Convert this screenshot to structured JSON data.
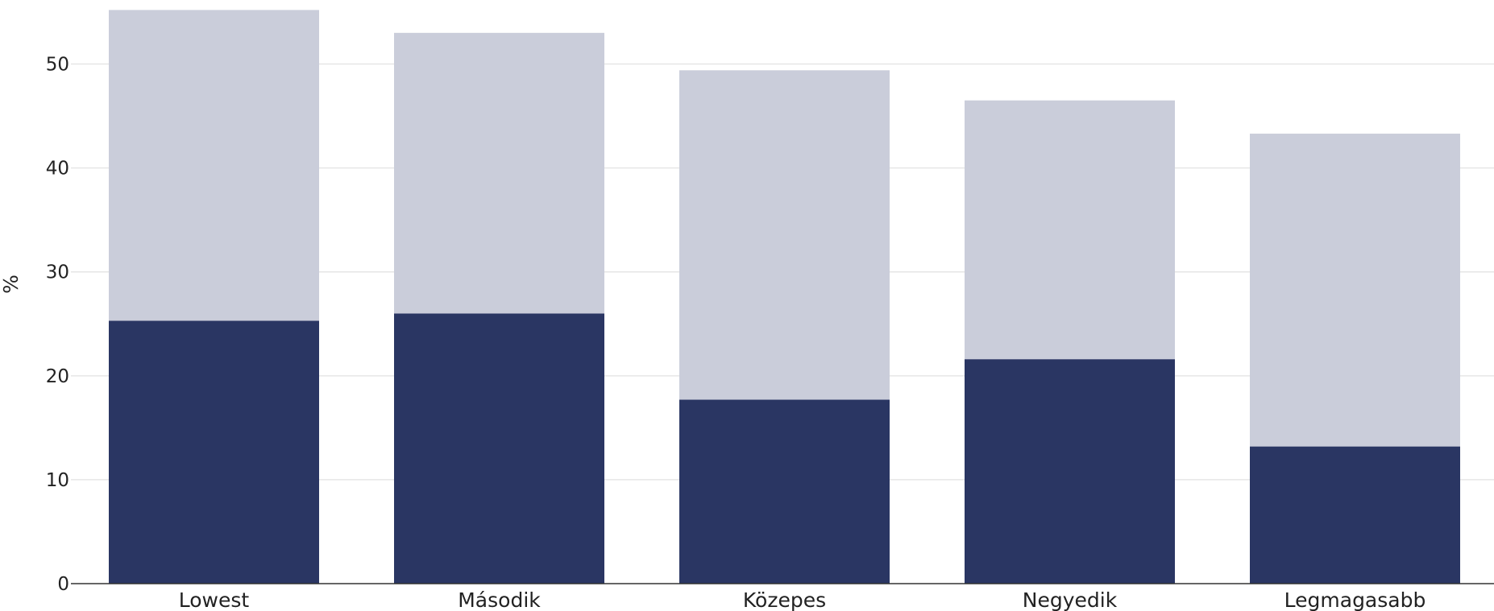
{
  "chart_data": {
    "type": "bar",
    "stacked": true,
    "categories": [
      "Lowest",
      "Második",
      "Közepes",
      "Negyedik",
      "Legmagasabb"
    ],
    "series": [
      {
        "values": [
          25.3,
          26.0,
          17.7,
          21.6,
          13.2
        ],
        "color": "#2a3663"
      },
      {
        "values": [
          29.9,
          27.0,
          31.7,
          24.9,
          30.1
        ],
        "color": "#cacdda"
      }
    ],
    "ylabel": "%",
    "xlabel": "",
    "ylim": [
      0,
      55
    ],
    "yticks": [
      0,
      10,
      20,
      30,
      40,
      50
    ],
    "grid": true
  }
}
